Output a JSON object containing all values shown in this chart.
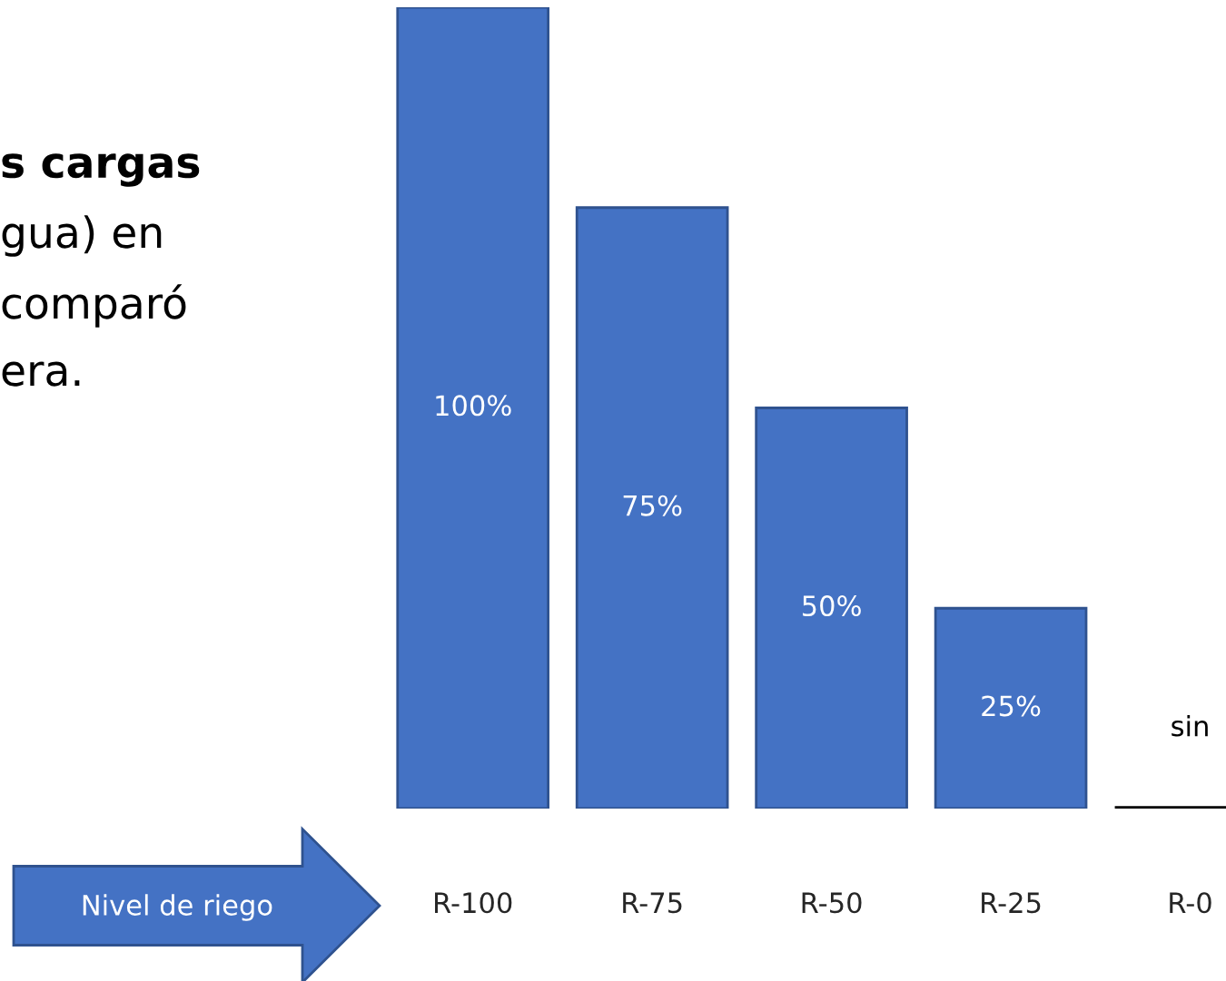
{
  "chart_data": {
    "type": "bar",
    "xlabel": "Nivel de riego",
    "categories": [
      "R-100",
      "R-75",
      "R-50",
      "R-25",
      "R-0"
    ],
    "values": [
      100,
      75,
      50,
      25,
      0
    ],
    "value_labels": [
      "100%",
      "75%",
      "50%",
      "25%",
      "sin"
    ],
    "colors": [
      "#4472c4",
      "#4472c4",
      "#4472c4",
      "#4472c4",
      "#000000"
    ],
    "annotations": [
      "s cargas",
      "gua) en",
      "comparó",
      "era."
    ],
    "grid": false,
    "legend": false
  }
}
